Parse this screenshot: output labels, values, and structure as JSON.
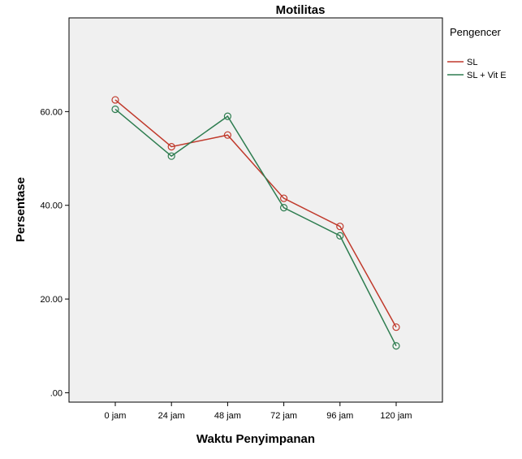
{
  "chart_data": {
    "type": "line",
    "title": "Motilitas",
    "xlabel": "Waktu Penyimpanan",
    "ylabel": "Persentase",
    "categories": [
      "0 jam",
      "24 jam",
      "48 jam",
      "72 jam",
      "96 jam",
      "120 jam"
    ],
    "y_ticks": [
      ".00",
      "20.00",
      "40.00",
      "60.00"
    ],
    "ylim": [
      -2,
      80
    ],
    "grid": false,
    "legend": {
      "title": "Pengencer",
      "position": "right"
    },
    "series": [
      {
        "name": "SL",
        "color": "#c0392b",
        "values": [
          62.5,
          52.5,
          55.0,
          41.5,
          35.5,
          14.0
        ]
      },
      {
        "name": "SL + Vit E",
        "color": "#2e7d50",
        "values": [
          60.5,
          50.5,
          59.0,
          39.5,
          33.5,
          10.0
        ]
      }
    ]
  }
}
